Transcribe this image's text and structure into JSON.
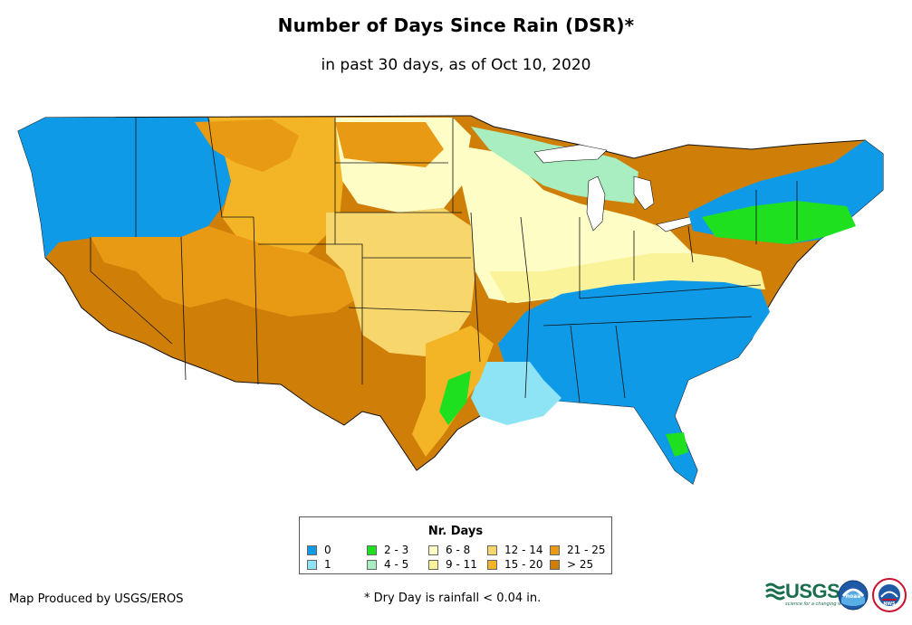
{
  "title": "Number of Days Since Rain (DSR)*",
  "subtitle": "in past 30 days, as of Oct 10, 2020",
  "legend": {
    "title": "Nr. Days",
    "items": [
      {
        "label": "0",
        "color": "#0f9ae8"
      },
      {
        "label": "1",
        "color": "#8ee3f5"
      },
      {
        "label": "2 - 3",
        "color": "#1ee01e"
      },
      {
        "label": "4 - 5",
        "color": "#a8eec0"
      },
      {
        "label": "6 - 8",
        "color": "#fefdc6"
      },
      {
        "label": "9 - 11",
        "color": "#faf39a"
      },
      {
        "label": "12 - 14",
        "color": "#f7d66c"
      },
      {
        "label": "15 - 20",
        "color": "#f3b426"
      },
      {
        "label": "21 - 25",
        "color": "#e99a14"
      },
      {
        "label": "> 25",
        "color": "#cf7f08"
      }
    ]
  },
  "credit": "Map Produced by USGS/EROS",
  "footnote": "* Dry Day is rainfall < 0.04 in.",
  "logos": {
    "usgs": "USGS",
    "usgs_tagline": "science for a changing world",
    "noaa": "noaa",
    "nws": "NWS"
  },
  "regions": [
    {
      "name": "Pacific Northwest",
      "category": "0"
    },
    {
      "name": "California",
      "category": "> 25"
    },
    {
      "name": "Southwest",
      "category": "> 25"
    },
    {
      "name": "Texas",
      "category": "> 25"
    },
    {
      "name": "Northern Rockies",
      "category": "15 - 20"
    },
    {
      "name": "Northern Plains",
      "category": "6 - 8"
    },
    {
      "name": "Central Plains",
      "category": "12 - 14"
    },
    {
      "name": "Great Lakes",
      "category": "4 - 5"
    },
    {
      "name": "Midwest",
      "category": "6 - 8"
    },
    {
      "name": "Ohio Valley",
      "category": "9 - 11"
    },
    {
      "name": "Southeast",
      "category": "0"
    },
    {
      "name": "Louisiana",
      "category": "1"
    },
    {
      "name": "Northeast",
      "category": "0"
    },
    {
      "name": "New York / New England",
      "category": "2 - 3"
    }
  ]
}
